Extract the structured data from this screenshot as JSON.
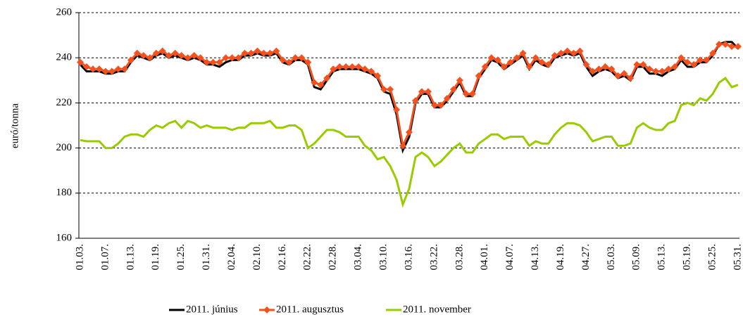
{
  "chart_data": {
    "type": "line",
    "y_label": "euró/tonna",
    "categories": [
      "01.03.",
      null,
      null,
      null,
      "01.07.",
      null,
      null,
      null,
      "01.13.",
      null,
      null,
      null,
      "01.19.",
      null,
      null,
      null,
      "01.25.",
      null,
      null,
      null,
      "01.31.",
      null,
      null,
      null,
      "02.04.",
      null,
      null,
      null,
      "02.10.",
      null,
      null,
      null,
      "02.16.",
      null,
      null,
      null,
      "02.22.",
      null,
      null,
      null,
      "02.28.",
      null,
      null,
      null,
      "03.04.",
      null,
      null,
      null,
      "03.10.",
      null,
      null,
      null,
      "03.16.",
      null,
      null,
      null,
      "03.22.",
      null,
      null,
      null,
      "03.28.",
      null,
      null,
      null,
      "04.01.",
      null,
      null,
      null,
      "04.07.",
      null,
      null,
      null,
      "04.13.",
      null,
      null,
      null,
      "04.19.",
      null,
      null,
      null,
      "04.27.",
      null,
      null,
      null,
      "05.03.",
      null,
      null,
      null,
      "05.09.",
      null,
      null,
      null,
      "05.13.",
      null,
      null,
      null,
      "05.19.",
      null,
      null,
      null,
      "05.25.",
      null,
      null,
      null,
      "05.31."
    ],
    "series": [
      {
        "name": "2011. június",
        "color": "#000000",
        "values": [
          237,
          234,
          234,
          234,
          233,
          233,
          234,
          234,
          238,
          241,
          240,
          239,
          241,
          242,
          240,
          241,
          240,
          239,
          240,
          239,
          237,
          237,
          236,
          238,
          239,
          239,
          241,
          241,
          242,
          241,
          241,
          242,
          238,
          237,
          239,
          239,
          237,
          227,
          226,
          230,
          234,
          235,
          235,
          235,
          235,
          234,
          233,
          231,
          225,
          224,
          215,
          199,
          205,
          220,
          224,
          224,
          218,
          218,
          221,
          225,
          229,
          223,
          223,
          231,
          235,
          239,
          238,
          235,
          237,
          239,
          241,
          235,
          239,
          237,
          236,
          240,
          241,
          242,
          241,
          242,
          236,
          232,
          234,
          235,
          234,
          231,
          232,
          230,
          236,
          236,
          233,
          233,
          232,
          234,
          235,
          239,
          236,
          236,
          238,
          238,
          241,
          246,
          247,
          247,
          244
        ]
      },
      {
        "name": "2011. augusztus",
        "color": "#f4511e",
        "marker": "diamond",
        "values": [
          238,
          236,
          235,
          235,
          234,
          234,
          235,
          235,
          239,
          242,
          241,
          240,
          242,
          243,
          241,
          242,
          241,
          240,
          241,
          240,
          238,
          238,
          238,
          240,
          240,
          240,
          242,
          242,
          243,
          242,
          242,
          243,
          239,
          238,
          240,
          240,
          238,
          229,
          228,
          231,
          235,
          236,
          236,
          236,
          236,
          235,
          234,
          232,
          226,
          226,
          217,
          201,
          207,
          221,
          225,
          225,
          219,
          219,
          222,
          226,
          230,
          224,
          224,
          232,
          236,
          240,
          239,
          236,
          238,
          240,
          242,
          236,
          240,
          238,
          237,
          241,
          242,
          243,
          242,
          243,
          237,
          234,
          235,
          236,
          235,
          232,
          233,
          231,
          237,
          237,
          235,
          234,
          234,
          235,
          236,
          240,
          238,
          237,
          239,
          239,
          242,
          246,
          246,
          245,
          245
        ]
      },
      {
        "name": "2011. november",
        "color": "#99cc00",
        "values": [
          203.5,
          203,
          203,
          203,
          200,
          200,
          202,
          205,
          206,
          206,
          205,
          208,
          210,
          209,
          211,
          212,
          209,
          212,
          211,
          209,
          210,
          209,
          209,
          209,
          208,
          209,
          209,
          211,
          211,
          211,
          212,
          209,
          209,
          210,
          210,
          208,
          200,
          202,
          205,
          208,
          208,
          207,
          205,
          205,
          205,
          201,
          199,
          195,
          196,
          192,
          186,
          175,
          182,
          196,
          198,
          196,
          192,
          194,
          197,
          200,
          202,
          198,
          198,
          202,
          204,
          206,
          206,
          204,
          205,
          205,
          205,
          201,
          203,
          202,
          202,
          206,
          209,
          211,
          211,
          210,
          207,
          203,
          204,
          205,
          205,
          201,
          201,
          202,
          209,
          211,
          209,
          208,
          208,
          211,
          212,
          219,
          220,
          219,
          222,
          221,
          224,
          229,
          231,
          227,
          228
        ]
      }
    ],
    "ylim": [
      160,
      260
    ],
    "yticks": [
      160,
      180,
      200,
      220,
      240,
      260
    ],
    "grid": true,
    "legend": "bottom"
  }
}
